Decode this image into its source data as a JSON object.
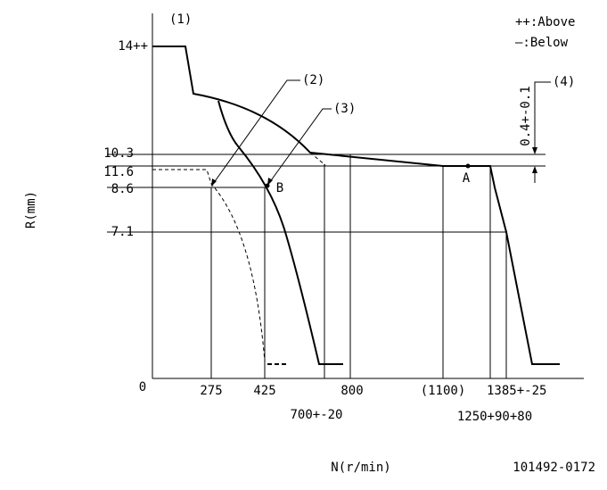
{
  "header": {
    "curve_label": "(1)",
    "legend_above": "++:Above",
    "legend_below": "—:Below",
    "code": "101492-0172"
  },
  "axes": {
    "y_label": "R(mm)",
    "x_label": "N(r/min)",
    "origin": "0"
  },
  "y_labels": {
    "top": "14++",
    "r1": "10.3",
    "r2": "11.6",
    "r3": "8.6",
    "r4": "7.1"
  },
  "x_labels": {
    "n1": "275",
    "n2": "425",
    "n3": "700+-20",
    "n4": "800",
    "n5": "(1100)",
    "n6": "1250+90+80",
    "n7": "1385+-25"
  },
  "callouts": {
    "c2": "(2)",
    "c3": "(3)",
    "c4": "(4)",
    "tolerance": "0.4+-0.1"
  },
  "points": {
    "a": "A",
    "b": "B"
  }
}
